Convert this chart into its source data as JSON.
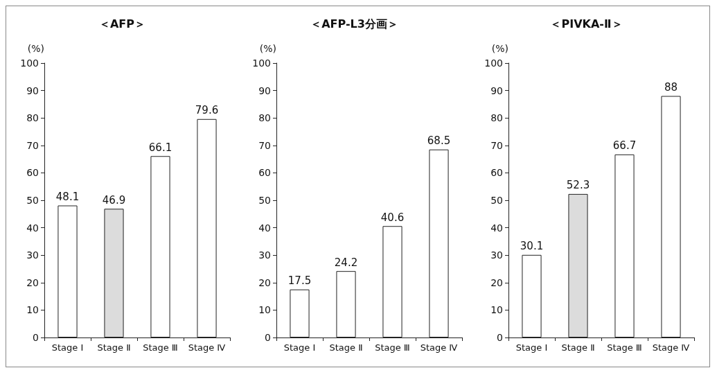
{
  "chart_data": [
    {
      "type": "bar",
      "title": "＜AFP＞",
      "ylabel": "(%)",
      "categories": [
        "Stage Ⅰ",
        "Stage Ⅱ",
        "Stage Ⅲ",
        "Stage Ⅳ"
      ],
      "values": [
        48.1,
        46.9,
        66.1,
        79.6
      ],
      "colors": [
        "#ffffff",
        "#dcdcdc",
        "#ffffff",
        "#ffffff"
      ],
      "ylim": [
        0,
        100
      ],
      "yticks": [
        0,
        10,
        20,
        30,
        40,
        50,
        60,
        70,
        80,
        90,
        100
      ],
      "grid": false,
      "data_labels": true
    },
    {
      "type": "bar",
      "title": "＜AFP-L3分画＞",
      "ylabel": "(%)",
      "categories": [
        "Stage Ⅰ",
        "Stage Ⅱ",
        "Stage Ⅲ",
        "Stage Ⅳ"
      ],
      "values": [
        17.5,
        24.2,
        40.6,
        68.5
      ],
      "colors": [
        "#ffffff",
        "#ffffff",
        "#ffffff",
        "#ffffff"
      ],
      "ylim": [
        0,
        100
      ],
      "yticks": [
        0,
        10,
        20,
        30,
        40,
        50,
        60,
        70,
        80,
        90,
        100
      ],
      "grid": false,
      "data_labels": true
    },
    {
      "type": "bar",
      "title": "＜PIVKA-Ⅱ＞",
      "ylabel": "(%)",
      "categories": [
        "Stage Ⅰ",
        "Stage Ⅱ",
        "Stage Ⅲ",
        "Stage Ⅳ"
      ],
      "values": [
        30.1,
        52.3,
        66.7,
        88
      ],
      "colors": [
        "#ffffff",
        "#dcdcdc",
        "#ffffff",
        "#ffffff"
      ],
      "ylim": [
        0,
        100
      ],
      "yticks": [
        0,
        10,
        20,
        30,
        40,
        50,
        60,
        70,
        80,
        90,
        100
      ],
      "grid": false,
      "data_labels": true
    }
  ]
}
